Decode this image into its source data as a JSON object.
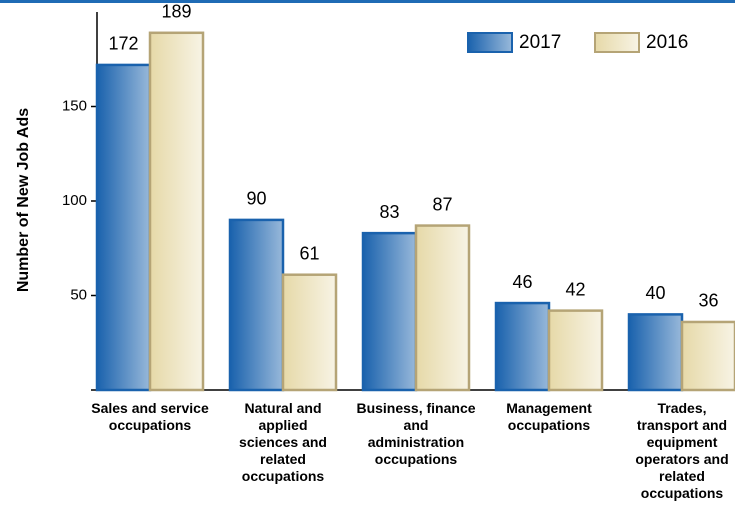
{
  "chart_data": {
    "type": "bar",
    "y_label": "Number of New Job Ads",
    "categories": [
      "Sales and service occupations",
      "Natural and applied sciences and related occupations",
      "Business, finance and administration occupations",
      "Management occupations",
      "Trades, transport and equipment operators and related occupations"
    ],
    "series": [
      {
        "name": "2017",
        "color": "#1a62ad",
        "values": [
          172,
          90,
          83,
          46,
          40
        ]
      },
      {
        "name": "2016",
        "color": "#e6d9a8",
        "stroke": "#b5a476",
        "values": [
          189,
          61,
          87,
          42,
          36
        ]
      }
    ],
    "ylim": [
      0,
      200
    ],
    "yticks": [
      50,
      100,
      150
    ],
    "legend": "top-right"
  }
}
